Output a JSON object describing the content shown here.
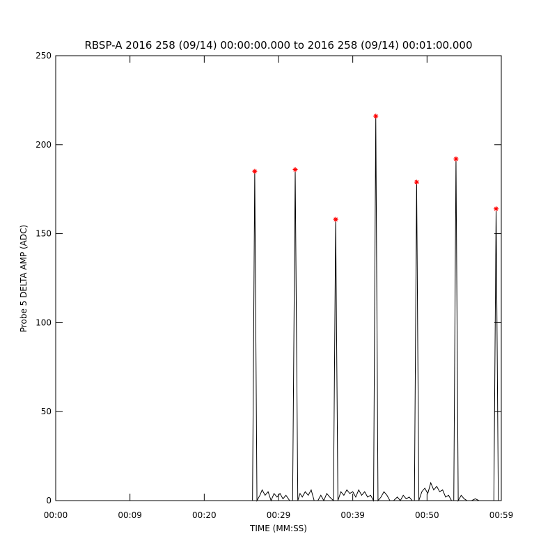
{
  "chart_data": {
    "type": "line",
    "title": "RBSP-A 2016 258 (09/14) 00:00:00.000 to 2016 258 (09/14) 00:01:00.000",
    "x_label": "TIME (MM:SS)",
    "y_label": "Probe 5 DELTA AMP (ADC)",
    "xlim": [
      0,
      60
    ],
    "ylim": [
      0,
      250
    ],
    "xticks": [
      {
        "value": 0,
        "label": "00:00"
      },
      {
        "value": 10,
        "label": "00:09"
      },
      {
        "value": 20,
        "label": "00:20"
      },
      {
        "value": 30,
        "label": "00:29"
      },
      {
        "value": 40,
        "label": "00:39"
      },
      {
        "value": 50,
        "label": "00:50"
      },
      {
        "value": 60,
        "label": "00:59"
      }
    ],
    "yticks": [
      0,
      50,
      100,
      150,
      200,
      250
    ],
    "series": [
      {
        "color": "#000000",
        "marker": "none",
        "x": [
          0,
          26.5,
          26.8,
          27.1,
          27.5,
          27.8,
          28.2,
          28.6,
          29.0,
          29.4,
          29.8,
          30.2,
          30.6,
          31.0,
          31.5,
          31.9,
          32.25,
          32.6,
          32.9,
          33.2,
          33.6,
          34.0,
          34.4,
          34.8,
          35.3,
          35.7,
          36.1,
          36.5,
          36.9,
          37.4,
          37.7,
          38.0,
          38.4,
          38.8,
          39.2,
          39.6,
          40.0,
          40.4,
          40.8,
          41.2,
          41.6,
          42.0,
          42.4,
          42.8,
          43.1,
          43.4,
          43.8,
          44.2,
          44.6,
          45.0,
          45.5,
          46.0,
          46.4,
          46.8,
          47.2,
          47.6,
          48.0,
          48.3,
          48.6,
          48.9,
          49.3,
          49.7,
          50.1,
          50.5,
          50.9,
          51.3,
          51.7,
          52.1,
          52.5,
          52.9,
          53.3,
          53.6,
          53.9,
          54.2,
          54.6,
          55.0,
          55.4,
          56.0,
          56.5,
          57.0,
          58.0,
          59.0,
          59.3,
          59.6,
          60
        ],
        "values": [
          0,
          0,
          185,
          0,
          3,
          6,
          3,
          5,
          0,
          4,
          2,
          4,
          1,
          3,
          0,
          0,
          186,
          0,
          4,
          2,
          5,
          3,
          6,
          0,
          0,
          3,
          0,
          4,
          2,
          0,
          158,
          0,
          5,
          3,
          6,
          4,
          5,
          2,
          6,
          3,
          5,
          2,
          3,
          0,
          216,
          0,
          2,
          5,
          3,
          0,
          0,
          2,
          0,
          3,
          1,
          2,
          0,
          0,
          179,
          0,
          5,
          7,
          4,
          10,
          6,
          8,
          5,
          6,
          2,
          3,
          0,
          0,
          192,
          0,
          3,
          1,
          0,
          0,
          1,
          0,
          0,
          0,
          164,
          0,
          0
        ]
      },
      {
        "color": "#ff0000",
        "marker": "star",
        "x": [
          26.8,
          32.25,
          37.7,
          43.1,
          48.6,
          53.9,
          59.3
        ],
        "values": [
          185,
          186,
          158,
          216,
          179,
          192,
          164
        ]
      }
    ]
  }
}
